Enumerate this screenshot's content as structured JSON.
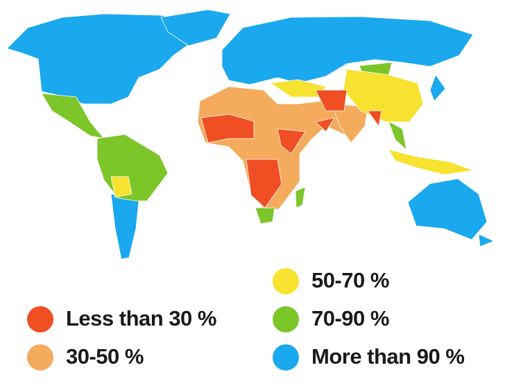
{
  "legend": {
    "items": [
      {
        "label": "Less than 30 %",
        "color": "#f04e23"
      },
      {
        "label": "30-50 %",
        "color": "#f4ab5c"
      },
      {
        "label": "50-70 %",
        "color": "#f6e22f"
      },
      {
        "label": "70-90 %",
        "color": "#7cc62a"
      },
      {
        "label": "More than 90 %",
        "color": "#1aa8ee"
      }
    ]
  }
}
